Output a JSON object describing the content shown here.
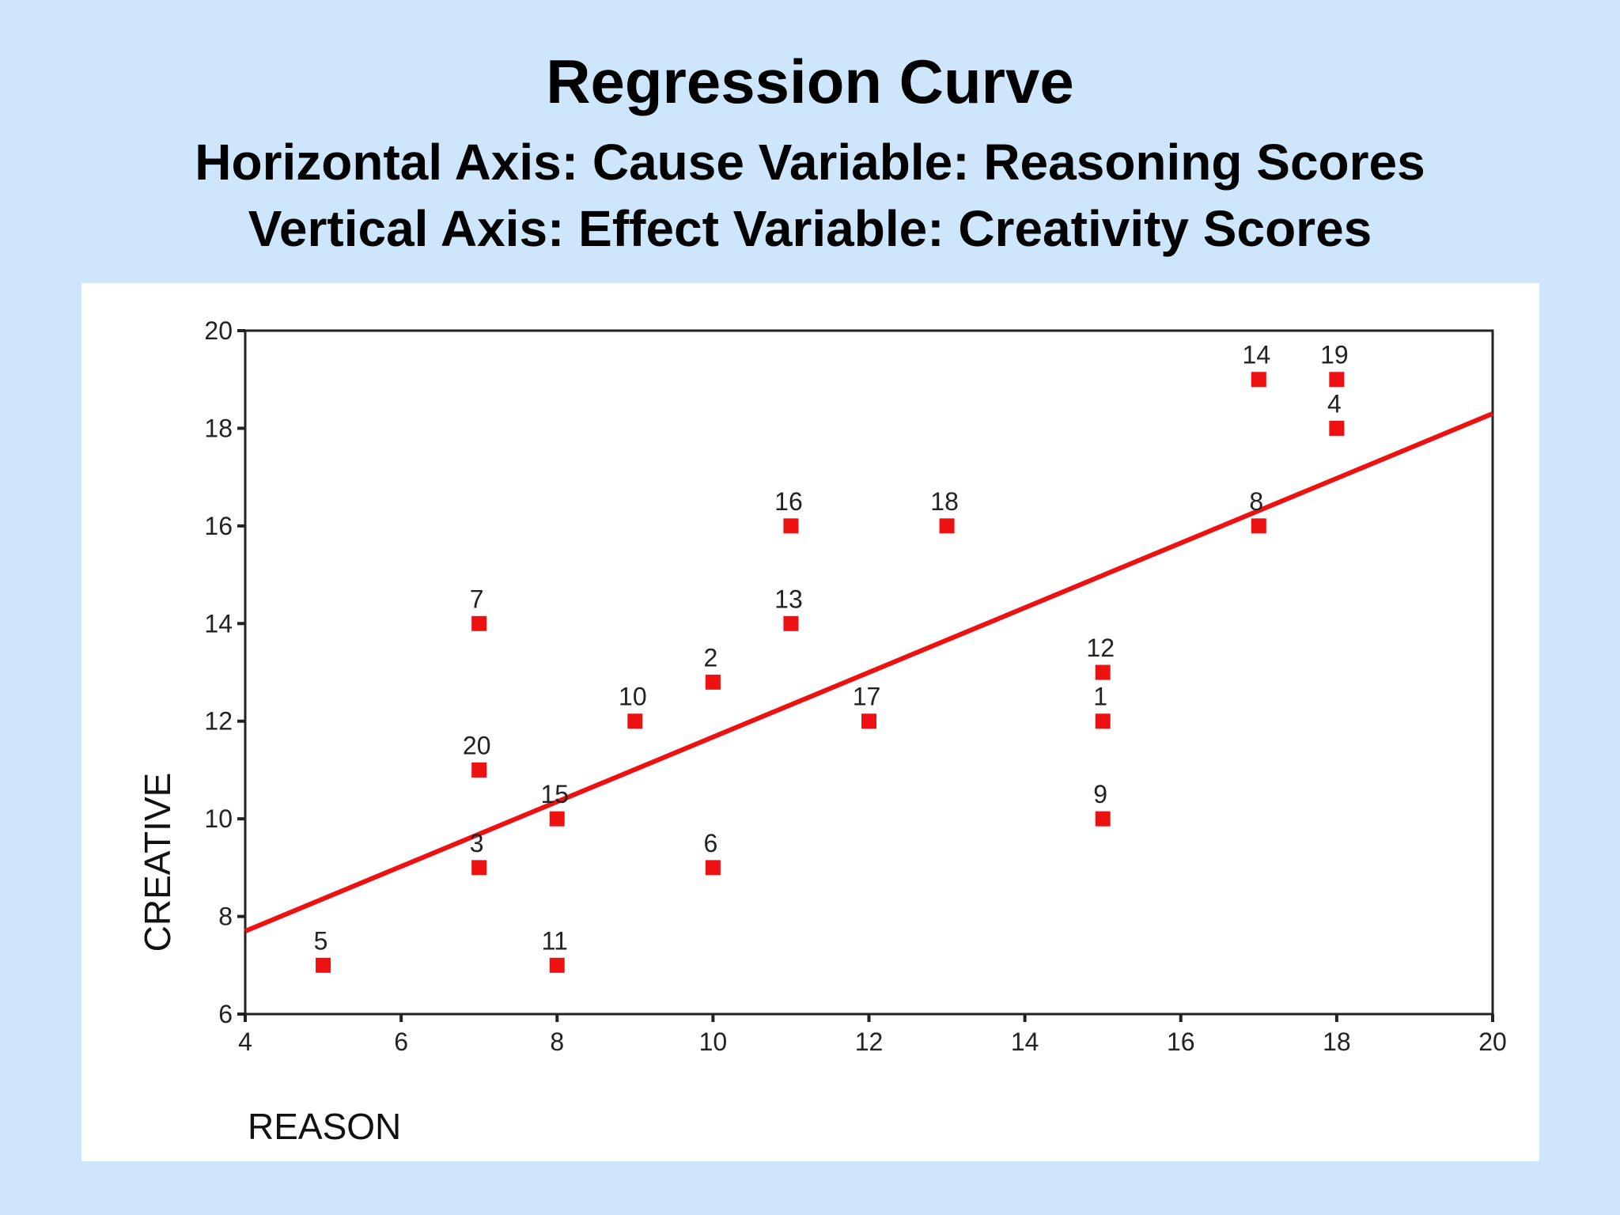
{
  "slide": {
    "title": "Regression Curve",
    "subtitle_line1": "Horizontal Axis: Cause Variable: Reasoning Scores",
    "subtitle_line2": "Vertical Axis: Effect Variable: Creativity Scores"
  },
  "colors": {
    "background": "#cde6fc",
    "panel": "#ffffff",
    "marker": "#ee1111",
    "line": "#ee1111"
  },
  "chart_data": {
    "type": "scatter",
    "xlabel": "REASON",
    "ylabel": "CREATIVE",
    "xlim": [
      4,
      20
    ],
    "ylim": [
      6,
      20
    ],
    "xticks": [
      4,
      6,
      8,
      10,
      12,
      14,
      16,
      18,
      20
    ],
    "yticks": [
      6,
      8,
      10,
      12,
      14,
      16,
      18,
      20
    ],
    "points": [
      {
        "label": "1",
        "x": 15,
        "y": 12
      },
      {
        "label": "2",
        "x": 10,
        "y": 12.8
      },
      {
        "label": "3",
        "x": 7,
        "y": 9
      },
      {
        "label": "4",
        "x": 18,
        "y": 18
      },
      {
        "label": "5",
        "x": 5,
        "y": 7
      },
      {
        "label": "6",
        "x": 10,
        "y": 9
      },
      {
        "label": "7",
        "x": 7,
        "y": 14
      },
      {
        "label": "8",
        "x": 17,
        "y": 16
      },
      {
        "label": "9",
        "x": 15,
        "y": 10
      },
      {
        "label": "10",
        "x": 9,
        "y": 12
      },
      {
        "label": "11",
        "x": 8,
        "y": 7
      },
      {
        "label": "12",
        "x": 15,
        "y": 13
      },
      {
        "label": "13",
        "x": 11,
        "y": 14
      },
      {
        "label": "14",
        "x": 17,
        "y": 19
      },
      {
        "label": "15",
        "x": 8,
        "y": 10
      },
      {
        "label": "16",
        "x": 11,
        "y": 16
      },
      {
        "label": "17",
        "x": 12,
        "y": 12
      },
      {
        "label": "18",
        "x": 13,
        "y": 16
      },
      {
        "label": "19",
        "x": 18,
        "y": 19
      },
      {
        "label": "20",
        "x": 7,
        "y": 11
      }
    ],
    "regression_line": {
      "x": [
        4,
        20
      ],
      "y": [
        7.7,
        18.3
      ]
    },
    "grid": false,
    "legend": "none"
  }
}
